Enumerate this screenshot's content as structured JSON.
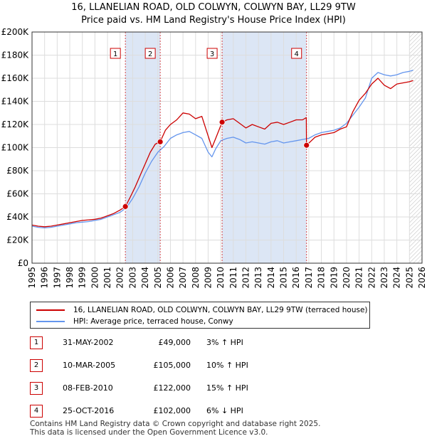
{
  "title_line1": "16, LLANELIAN ROAD, OLD COLWYN, COLWYN BAY, LL29 9TW",
  "title_line2": "Price paid vs. HM Land Registry's House Price Index (HPI)",
  "colors": {
    "property": "#cc0000",
    "hpi": "#6495ed",
    "shade": "#dce6f5",
    "marker_border": "#cc0000"
  },
  "chart_data": {
    "type": "line",
    "title": "16, LLANELIAN ROAD, OLD COLWYN, COLWYN BAY, LL29 9TW Price paid vs. HM Land Registry's House Price Index (HPI)",
    "xlabel": "",
    "ylabel": "",
    "xlim": [
      1995,
      2026
    ],
    "ylim": [
      0,
      200000
    ],
    "x_ticks": [
      1995,
      1996,
      1997,
      1998,
      1999,
      2000,
      2001,
      2002,
      2003,
      2004,
      2005,
      2006,
      2007,
      2008,
      2009,
      2010,
      2011,
      2012,
      2013,
      2014,
      2015,
      2016,
      2017,
      2018,
      2019,
      2020,
      2021,
      2022,
      2023,
      2024,
      2025,
      2026
    ],
    "y_ticks": [
      {
        "value": 0,
        "label": "£0"
      },
      {
        "value": 20000,
        "label": "£20K"
      },
      {
        "value": 40000,
        "label": "£40K"
      },
      {
        "value": 60000,
        "label": "£60K"
      },
      {
        "value": 80000,
        "label": "£80K"
      },
      {
        "value": 100000,
        "label": "£100K"
      },
      {
        "value": 120000,
        "label": "£120K"
      },
      {
        "value": 140000,
        "label": "£140K"
      },
      {
        "value": 160000,
        "label": "£160K"
      },
      {
        "value": 180000,
        "label": "£180K"
      },
      {
        "value": 200000,
        "label": "£200K"
      }
    ],
    "grid": true,
    "series": [
      {
        "name": "16, LLANELIAN ROAD, OLD COLWYN, COLWYN BAY, LL29 9TW (terraced house)",
        "color": "#cc0000",
        "x": [
          1995.0,
          1995.5,
          1996.0,
          1996.5,
          1997.0,
          1997.5,
          1998.0,
          1998.5,
          1999.0,
          1999.5,
          2000.0,
          2000.5,
          2001.0,
          2001.5,
          2002.0,
          2002.42,
          2002.8,
          2003.2,
          2003.6,
          2004.0,
          2004.4,
          2004.8,
          2005.19,
          2005.6,
          2006.0,
          2006.5,
          2007.0,
          2007.5,
          2008.0,
          2008.5,
          2009.0,
          2009.3,
          2009.6,
          2010.11,
          2010.5,
          2011.0,
          2011.5,
          2012.0,
          2012.5,
          2013.0,
          2013.5,
          2014.0,
          2014.5,
          2015.0,
          2015.5,
          2016.0,
          2016.5,
          2016.8,
          2016.82,
          2017.5,
          2018.0,
          2018.5,
          2019.0,
          2019.5,
          2020.0,
          2020.5,
          2021.0,
          2021.5,
          2022.0,
          2022.5,
          2023.0,
          2023.5,
          2024.0,
          2024.5,
          2025.0,
          2025.3
        ],
        "values": [
          33000,
          32000,
          31500,
          32000,
          33000,
          34000,
          35000,
          36000,
          37000,
          37500,
          38000,
          39000,
          41000,
          43000,
          46000,
          49000,
          57000,
          66000,
          76000,
          86000,
          96000,
          103000,
          105000,
          115000,
          120000,
          124000,
          130000,
          129000,
          125000,
          127000,
          110000,
          100000,
          108000,
          122000,
          124000,
          125000,
          121000,
          117000,
          120000,
          118000,
          116000,
          121000,
          122000,
          120000,
          122000,
          124000,
          124000,
          126000,
          102000,
          109000,
          111000,
          112000,
          113000,
          116000,
          118000,
          131000,
          141000,
          147000,
          155000,
          160000,
          154000,
          151000,
          155000,
          156000,
          157000,
          158000
        ]
      },
      {
        "name": "HPI: Average price, terraced house, Conwy",
        "color": "#6495ed",
        "x": [
          1995.0,
          1995.5,
          1996.0,
          1996.5,
          1997.0,
          1997.5,
          1998.0,
          1998.5,
          1999.0,
          1999.5,
          2000.0,
          2000.5,
          2001.0,
          2001.5,
          2002.0,
          2002.5,
          2003.0,
          2003.5,
          2004.0,
          2004.5,
          2005.0,
          2005.5,
          2006.0,
          2006.5,
          2007.0,
          2007.5,
          2008.0,
          2008.5,
          2009.0,
          2009.3,
          2009.6,
          2010.0,
          2010.5,
          2011.0,
          2011.5,
          2012.0,
          2012.5,
          2013.0,
          2013.5,
          2014.0,
          2014.5,
          2015.0,
          2015.5,
          2016.0,
          2016.5,
          2017.0,
          2017.5,
          2018.0,
          2018.5,
          2019.0,
          2019.5,
          2020.0,
          2020.5,
          2021.0,
          2021.5,
          2022.0,
          2022.5,
          2023.0,
          2023.5,
          2024.0,
          2024.5,
          2025.0,
          2025.3
        ],
        "values": [
          32000,
          31000,
          30500,
          31000,
          32000,
          33000,
          34000,
          35000,
          35500,
          36000,
          37000,
          38000,
          40000,
          42000,
          44000,
          48000,
          56000,
          66000,
          78000,
          88000,
          96000,
          101000,
          108000,
          111000,
          113000,
          114000,
          111000,
          108000,
          96000,
          92000,
          99000,
          106000,
          108000,
          109000,
          107000,
          104000,
          105000,
          104000,
          103000,
          105000,
          106000,
          104000,
          105000,
          106000,
          107000,
          108000,
          111000,
          113000,
          114000,
          115000,
          117000,
          121000,
          128000,
          135000,
          143000,
          160000,
          165000,
          163000,
          162000,
          163000,
          165000,
          166000,
          167000
        ]
      }
    ],
    "sales": [
      {
        "label": "1",
        "x": 2002.42,
        "value": 49000
      },
      {
        "label": "2",
        "x": 2005.19,
        "value": 105000
      },
      {
        "label": "3",
        "x": 2010.11,
        "value": 122000
      },
      {
        "label": "4",
        "x": 2016.82,
        "value": 102000
      }
    ],
    "shaded_ranges": [
      [
        2002.42,
        2005.19
      ],
      [
        2010.11,
        2016.82
      ]
    ],
    "hatched_range": [
      2025.0,
      2026.0
    ]
  },
  "legend": {
    "property_label": "16, LLANELIAN ROAD, OLD COLWYN, COLWYN BAY, LL29 9TW (terraced house)",
    "hpi_label": "HPI: Average price, terraced house, Conwy"
  },
  "sales_table": [
    {
      "num": "1",
      "date": "31-MAY-2002",
      "price": "£49,000",
      "hpi": "3% ↑ HPI"
    },
    {
      "num": "2",
      "date": "10-MAR-2005",
      "price": "£105,000",
      "hpi": "10% ↑ HPI"
    },
    {
      "num": "3",
      "date": "08-FEB-2010",
      "price": "£122,000",
      "hpi": "15% ↑ HPI"
    },
    {
      "num": "4",
      "date": "25-OCT-2016",
      "price": "£102,000",
      "hpi": "6% ↓ HPI"
    }
  ],
  "footer": {
    "line1": "Contains HM Land Registry data © Crown copyright and database right 2025.",
    "line2": "This data is licensed under the Open Government Licence v3.0."
  }
}
